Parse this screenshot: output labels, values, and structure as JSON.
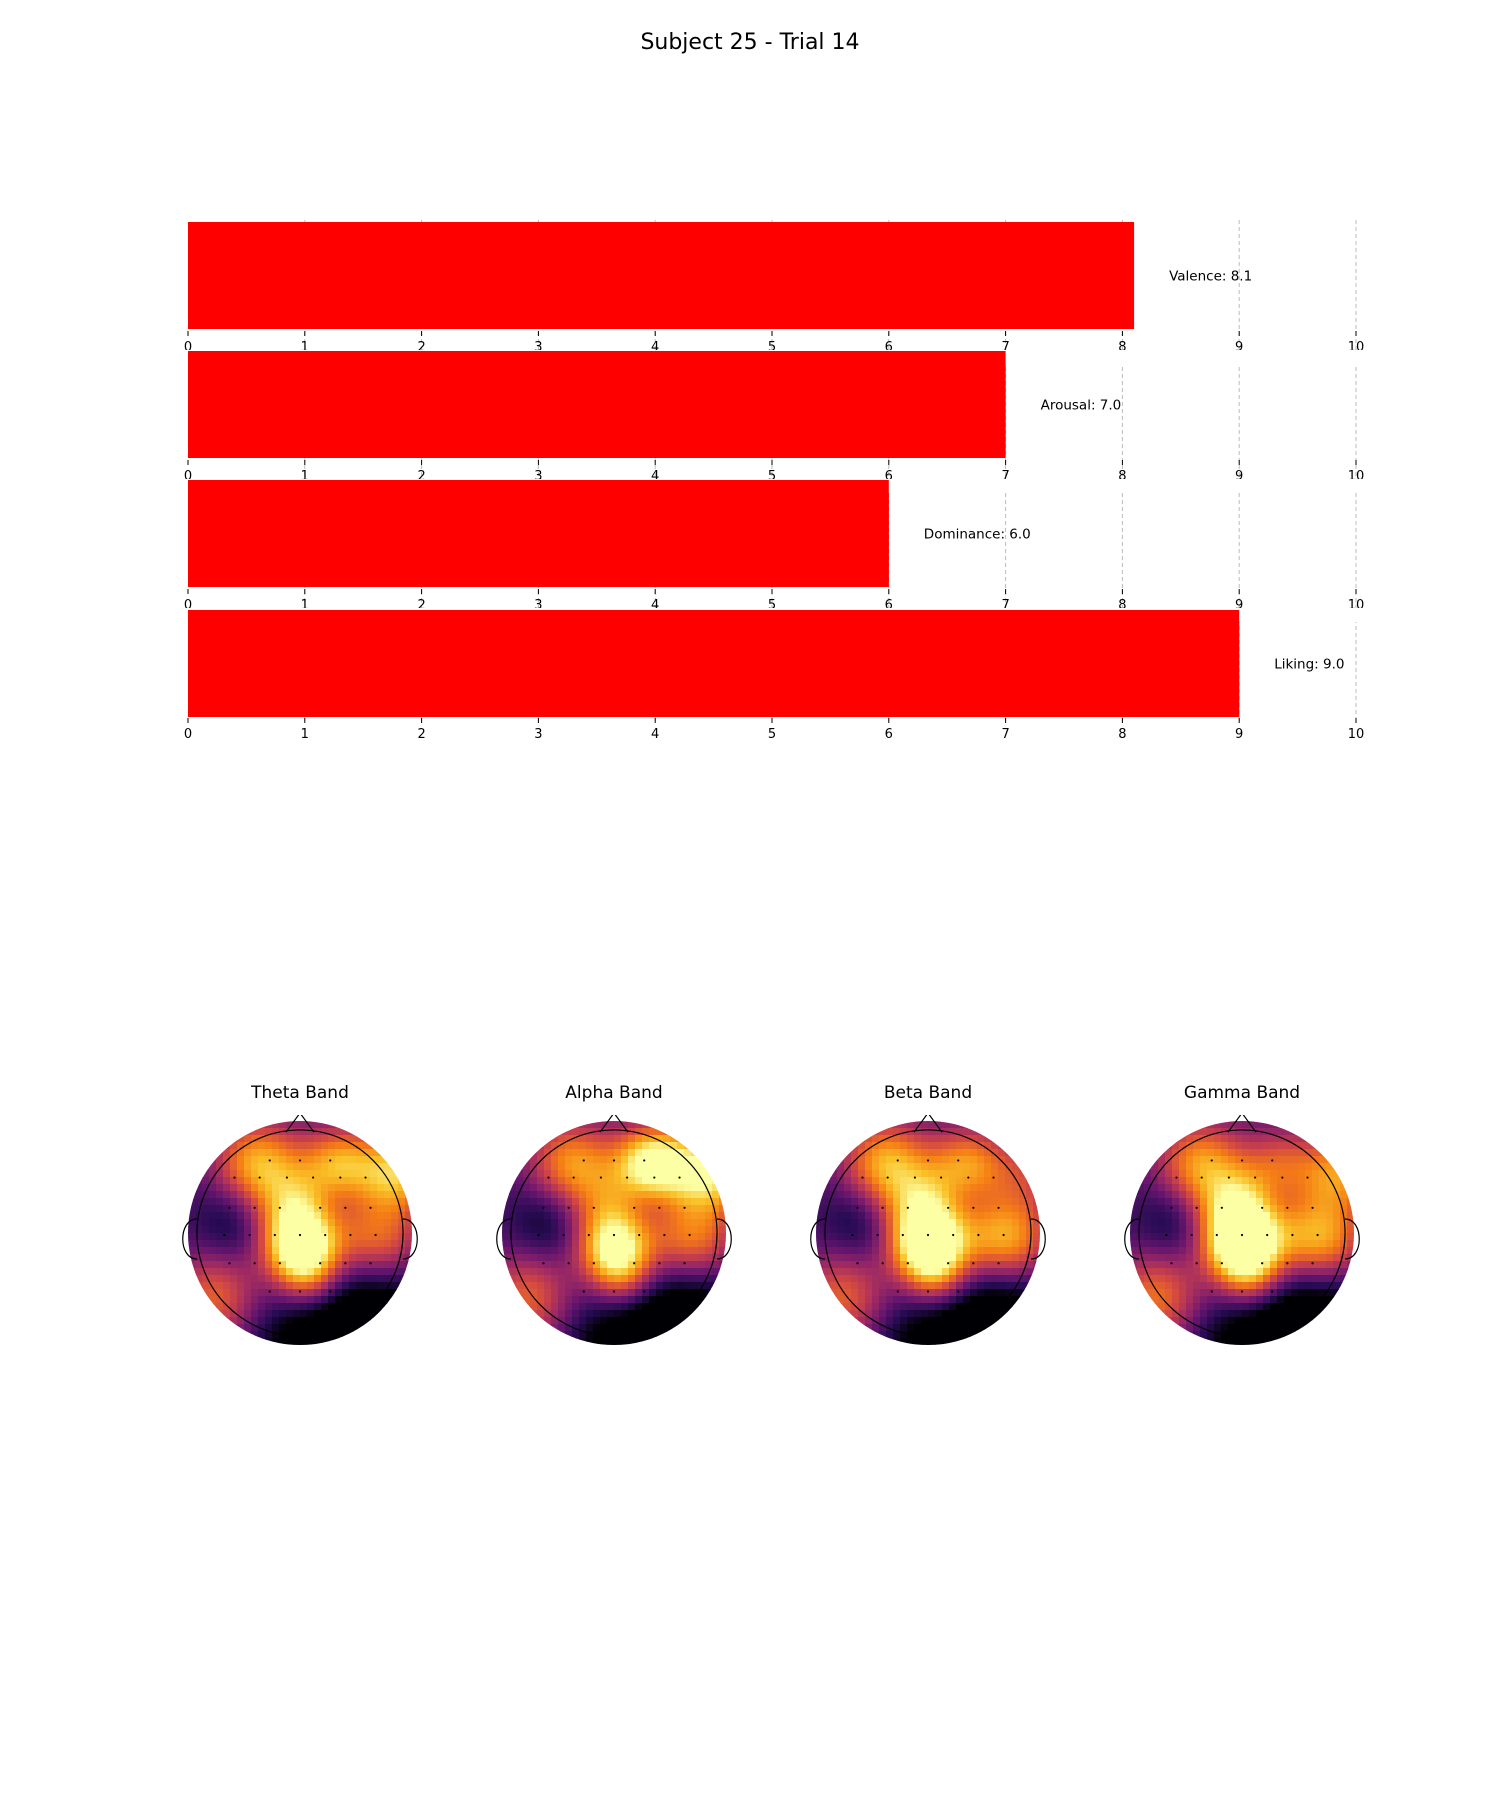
{
  "title": "Subject 25 - Trial 14",
  "colors": {
    "bar": "#ff0000",
    "grid": "#bbbbbb"
  },
  "chart_data": [
    {
      "type": "bar",
      "orientation": "horizontal",
      "categories": [
        "Valence",
        "Arousal",
        "Dominance",
        "Liking"
      ],
      "values": [
        8.1,
        7.0,
        6.0,
        9.0
      ],
      "labels": [
        "Valence: 8.1",
        "Arousal: 7.0",
        "Dominance: 6.0",
        "Liking: 9.0"
      ],
      "xlim": [
        0,
        10
      ],
      "xticks": [
        "0",
        "1",
        "2",
        "3",
        "4",
        "5",
        "6",
        "7",
        "8",
        "9",
        "10"
      ],
      "grid": "x-dashed"
    },
    {
      "type": "heatmap",
      "kind": "topographic-map",
      "colormap": "inferno",
      "panels": [
        {
          "title": "Theta Band"
        },
        {
          "title": "Alpha Band"
        },
        {
          "title": "Beta Band"
        },
        {
          "title": "Gamma Band"
        }
      ]
    }
  ]
}
